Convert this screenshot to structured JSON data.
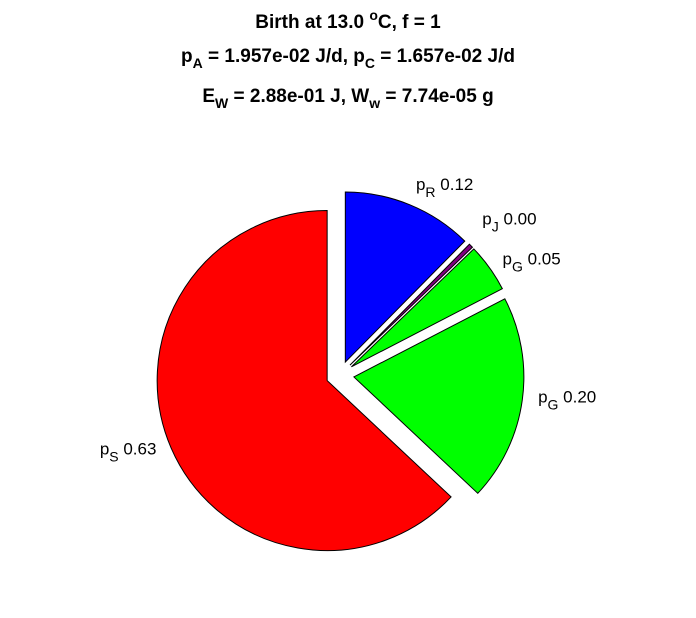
{
  "chart_data": {
    "type": "pie",
    "title_lines": [
      {
        "parts": [
          {
            "t": "text",
            "v": "Birth at 13.0 "
          },
          {
            "t": "sup",
            "v": "o"
          },
          {
            "t": "text",
            "v": "C, f = 1"
          }
        ]
      },
      {
        "parts": [
          {
            "t": "text",
            "v": "p"
          },
          {
            "t": "sub",
            "v": "A"
          },
          {
            "t": "text",
            "v": " = 1.957e-02 J/d, p"
          },
          {
            "t": "sub",
            "v": "C"
          },
          {
            "t": "text",
            "v": " = 1.657e-02 J/d"
          }
        ]
      },
      {
        "parts": [
          {
            "t": "text",
            "v": "E"
          },
          {
            "t": "sub",
            "v": "W"
          },
          {
            "t": "text",
            "v": " = 2.88e-01 J, W"
          },
          {
            "t": "sub",
            "v": "w"
          },
          {
            "t": "text",
            "v": " = 7.74e-05 g"
          }
        ]
      }
    ],
    "slices": [
      {
        "name": "p",
        "sub": "R",
        "value_label": "0.12",
        "value": 0.124,
        "color": "#0000ff",
        "exploded": true
      },
      {
        "name": "p",
        "sub": "J",
        "value_label": "0.00",
        "value": 0.004,
        "color": "#800080",
        "exploded": true
      },
      {
        "name": "p",
        "sub": "G",
        "value_label": "0.05",
        "value": 0.046,
        "color": "#00ff00",
        "exploded": true
      },
      {
        "name": "p",
        "sub": "G",
        "value_label": "0.20",
        "value": 0.196,
        "color": "#00ff00",
        "exploded": true
      },
      {
        "name": "p",
        "sub": "S",
        "value_label": "0.63",
        "value": 0.63,
        "color": "#ff0000",
        "exploded": true
      }
    ],
    "start_angle_deg": 0,
    "direction": "clockwise",
    "edge_color": "#000000"
  }
}
